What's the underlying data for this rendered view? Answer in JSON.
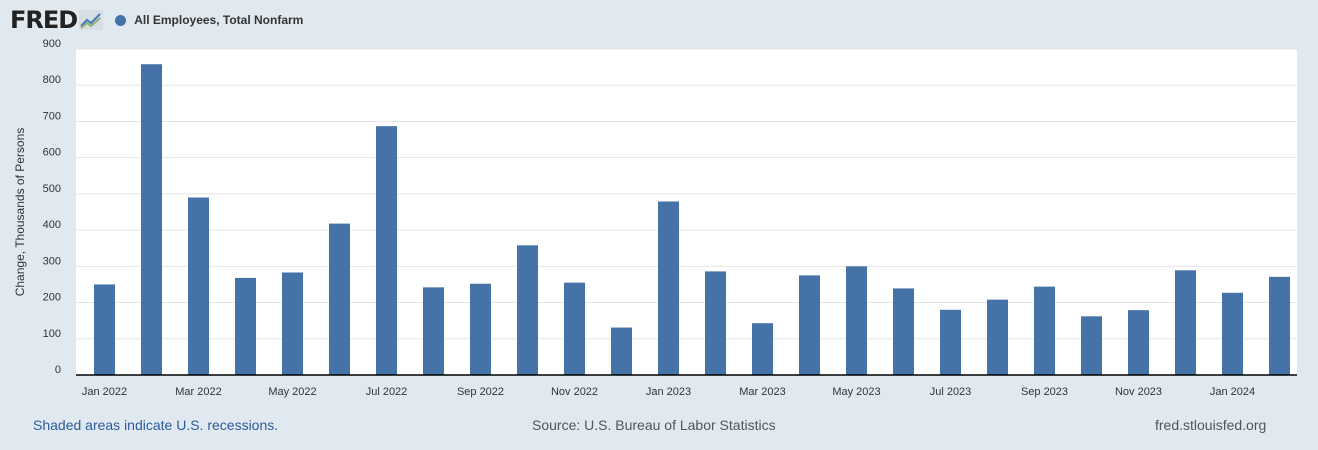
{
  "header": {
    "logo_text": "FRED",
    "series_label": "All Employees, Total Nonfarm",
    "series_color": "#4572a7"
  },
  "footer": {
    "recession_note": "Shaded areas indicate U.S. recessions.",
    "source": "Source: U.S. Bureau of Labor Statistics",
    "site": "fred.stlouisfed.org"
  },
  "chart_data": {
    "type": "bar",
    "title": "",
    "xlabel": "",
    "ylabel": "Change, Thousands of Persons",
    "ylim": [
      0,
      900
    ],
    "yticks": [
      0,
      100,
      200,
      300,
      400,
      500,
      600,
      700,
      800,
      900
    ],
    "grid": true,
    "bar_color": "#4572a7",
    "categories": [
      "Jan 2022",
      "Feb 2022",
      "Mar 2022",
      "Apr 2022",
      "May 2022",
      "Jun 2022",
      "Jul 2022",
      "Aug 2022",
      "Sep 2022",
      "Oct 2022",
      "Nov 2022",
      "Dec 2022",
      "Jan 2023",
      "Feb 2023",
      "Mar 2023",
      "Apr 2023",
      "May 2023",
      "Jun 2023",
      "Jul 2023",
      "Aug 2023",
      "Sep 2023",
      "Oct 2023",
      "Nov 2023",
      "Dec 2023",
      "Jan 2024",
      "Feb 2024"
    ],
    "xtick_labels": [
      "Jan 2022",
      "Mar 2022",
      "May 2022",
      "Jul 2022",
      "Sep 2022",
      "Nov 2022",
      "Jan 2023",
      "Mar 2023",
      "May 2023",
      "Jul 2023",
      "Sep 2023",
      "Nov 2023",
      "Jan 2024"
    ],
    "series": [
      {
        "name": "All Employees, Total Nonfarm",
        "values": [
          250,
          858,
          490,
          268,
          283,
          418,
          687,
          242,
          252,
          358,
          255,
          131,
          479,
          286,
          143,
          275,
          300,
          239,
          180,
          208,
          244,
          162,
          179,
          289,
          227,
          271
        ]
      }
    ]
  }
}
